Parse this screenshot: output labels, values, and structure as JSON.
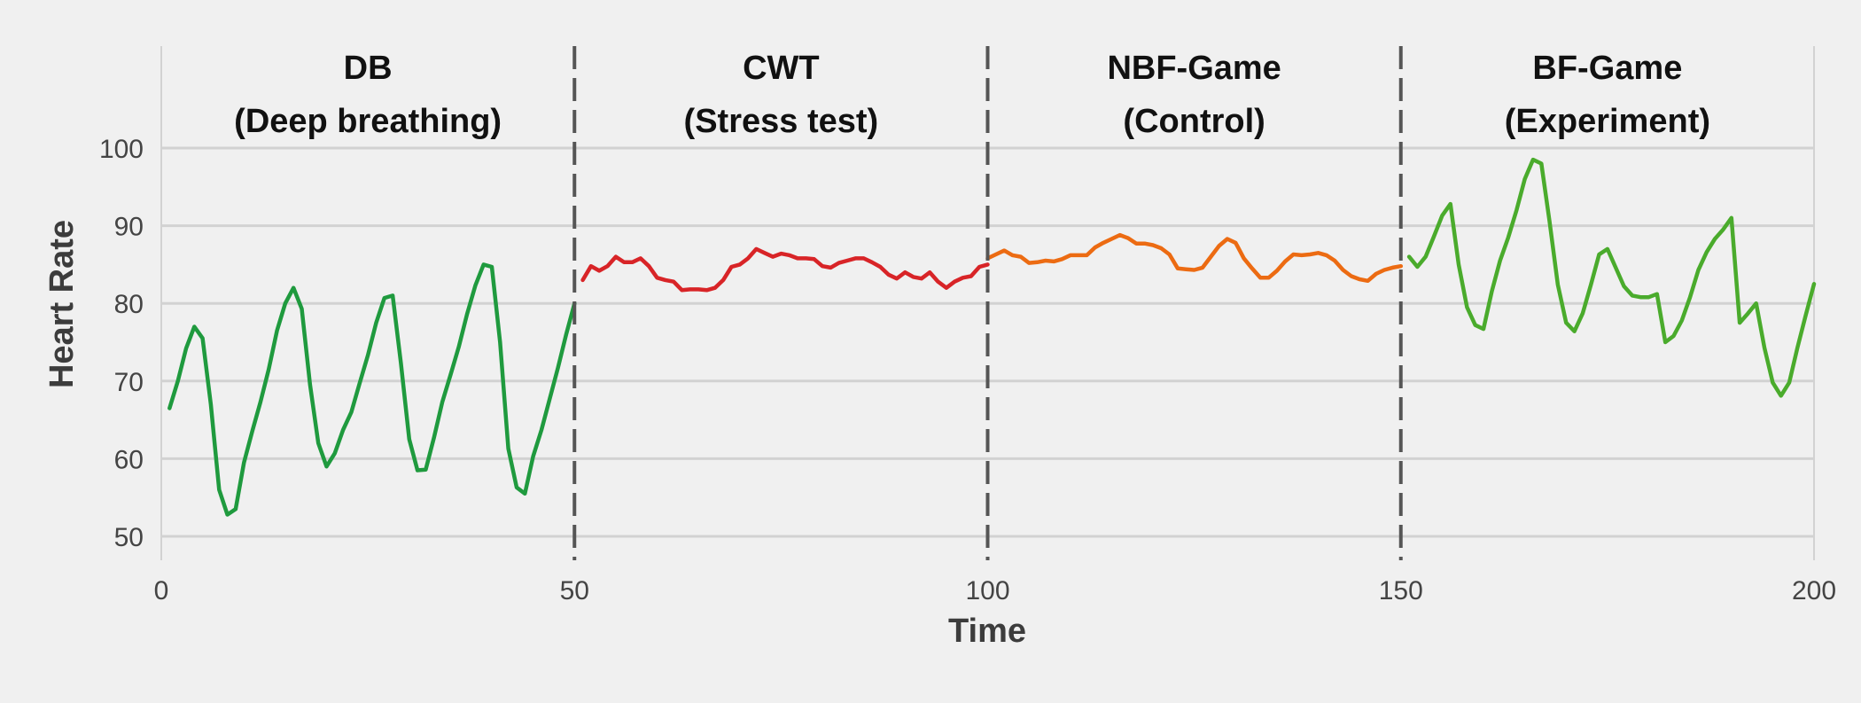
{
  "chart_data": {
    "type": "line",
    "xlabel": "Time",
    "ylabel": "Heart Rate",
    "xlim": [
      0,
      200
    ],
    "ylim": [
      47,
      113
    ],
    "x_ticks": [
      0,
      50,
      100,
      150,
      200
    ],
    "y_ticks": [
      50,
      60,
      70,
      80,
      90,
      100
    ],
    "grid": "horizontal",
    "phase_boundaries": [
      50,
      100,
      150
    ],
    "phases": [
      {
        "title": "DB",
        "subtitle": "(Deep breathing)",
        "x_start": 0,
        "x_end": 50
      },
      {
        "title": "CWT",
        "subtitle": "(Stress test)",
        "x_start": 50,
        "x_end": 100
      },
      {
        "title": "NBF-Game",
        "subtitle": "(Control)",
        "x_start": 100,
        "x_end": 150
      },
      {
        "title": "BF-Game",
        "subtitle": "(Experiment)",
        "x_start": 150,
        "x_end": 200
      }
    ],
    "series": [
      {
        "color": "#1f9a3e",
        "x": [
          1,
          2,
          3,
          4,
          5,
          6,
          7,
          8,
          9,
          10,
          11,
          12,
          13,
          14,
          15,
          16,
          17,
          18,
          19,
          20,
          21,
          22,
          23,
          24,
          25,
          26,
          27,
          28,
          29,
          30,
          31,
          32,
          33,
          34,
          35,
          36,
          37,
          38,
          39,
          40,
          41,
          42,
          43,
          44,
          45,
          46,
          47,
          48,
          49,
          50
        ],
        "y": [
          66.5,
          70,
          74.2,
          77,
          75.5,
          67,
          56,
          52.8,
          53.5,
          59.5,
          63.5,
          67.3,
          71.5,
          76.5,
          80,
          82,
          79.3,
          69.5,
          62,
          59,
          60.7,
          63.7,
          66,
          69.7,
          73.3,
          77.5,
          80.7,
          81,
          72.3,
          62.5,
          58.5,
          58.6,
          62.7,
          67.3,
          70.8,
          74.4,
          78.6,
          82.3,
          85,
          84.7,
          75,
          61.3,
          56.3,
          55.5,
          60.3,
          63.7,
          67.7,
          71.7,
          76,
          80
        ]
      },
      {
        "color": "#d82427",
        "x": [
          51,
          52,
          53,
          54,
          55,
          56,
          57,
          58,
          59,
          60,
          61,
          62,
          63,
          64,
          65,
          66,
          67,
          68,
          69,
          70,
          71,
          72,
          73,
          74,
          75,
          76,
          77,
          78,
          79,
          80,
          81,
          82,
          83,
          84,
          85,
          86,
          87,
          88,
          89,
          90,
          91,
          92,
          93,
          94,
          95,
          96,
          97,
          98,
          99,
          100
        ],
        "y": [
          83,
          84.8,
          84.2,
          84.8,
          86,
          85.3,
          85.3,
          85.8,
          84.8,
          83.3,
          83,
          82.8,
          81.7,
          81.8,
          81.8,
          81.7,
          82,
          83,
          84.7,
          85,
          85.8,
          87,
          86.5,
          86,
          86.4,
          86.2,
          85.8,
          85.8,
          85.7,
          84.8,
          84.6,
          85.2,
          85.5,
          85.8,
          85.8,
          85.3,
          84.7,
          83.7,
          83.2,
          84,
          83.4,
          83.2,
          84,
          82.8,
          82,
          82.8,
          83.3,
          83.5,
          84.7,
          85
        ]
      },
      {
        "color": "#ec6b12",
        "x": [
          100,
          101,
          102,
          103,
          104,
          105,
          106,
          107,
          108,
          109,
          110,
          111,
          112,
          113,
          114,
          115,
          116,
          117,
          118,
          119,
          120,
          121,
          122,
          123,
          124,
          125,
          126,
          127,
          128,
          129,
          130,
          131,
          132,
          133,
          134,
          135,
          136,
          137,
          138,
          139,
          140,
          141,
          142,
          143,
          144,
          145,
          146,
          147,
          148,
          149,
          150
        ],
        "y": [
          85.8,
          86.3,
          86.8,
          86.2,
          86,
          85.2,
          85.3,
          85.5,
          85.4,
          85.7,
          86.2,
          86.2,
          86.2,
          87.2,
          87.8,
          88.3,
          88.8,
          88.4,
          87.7,
          87.7,
          87.5,
          87.1,
          86.3,
          84.5,
          84.4,
          84.3,
          84.6,
          86,
          87.4,
          88.3,
          87.8,
          85.8,
          84.5,
          83.3,
          83.3,
          84.2,
          85.4,
          86.3,
          86.2,
          86.3,
          86.5,
          86.2,
          85.5,
          84.3,
          83.5,
          83.1,
          82.9,
          83.8,
          84.3,
          84.6,
          84.8
        ]
      },
      {
        "color": "#4aab2c",
        "x": [
          151,
          152,
          153,
          154,
          155,
          156,
          157,
          158,
          159,
          160,
          161,
          162,
          163,
          164,
          165,
          166,
          167,
          168,
          169,
          170,
          171,
          172,
          173,
          174,
          175,
          176,
          177,
          178,
          179,
          180,
          181,
          182,
          183,
          184,
          185,
          186,
          187,
          188,
          189,
          190,
          191,
          192,
          193,
          194,
          195,
          196,
          197,
          198,
          199,
          200
        ],
        "y": [
          86,
          84.7,
          86,
          88.6,
          91.3,
          92.8,
          85,
          79.5,
          77.2,
          76.7,
          81.5,
          85.5,
          88.5,
          92,
          96,
          98.5,
          98,
          90.5,
          82.4,
          77.5,
          76.4,
          78.7,
          82.4,
          86.3,
          87,
          84.6,
          82.2,
          81,
          80.8,
          80.8,
          81.2,
          75,
          75.8,
          77.8,
          80.8,
          84.3,
          86.6,
          88.3,
          89.5,
          91,
          77.5,
          78.7,
          80,
          74.3,
          69.8,
          68.1,
          69.8,
          74.3,
          78.5,
          82.5
        ]
      }
    ]
  }
}
